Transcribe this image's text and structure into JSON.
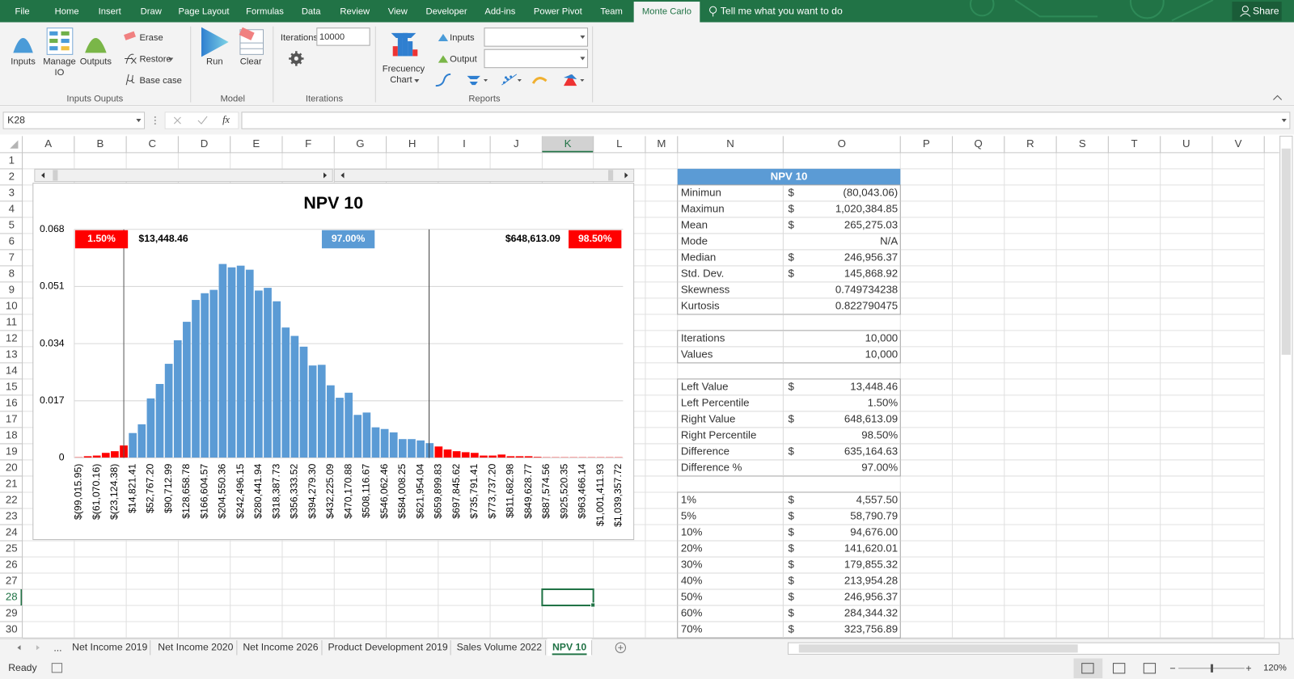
{
  "ribbon": {
    "tabs": [
      {
        "label": "File"
      },
      {
        "label": "Home"
      },
      {
        "label": "Insert"
      },
      {
        "label": "Draw"
      },
      {
        "label": "Page Layout"
      },
      {
        "label": "Formulas"
      },
      {
        "label": "Data"
      },
      {
        "label": "Review"
      },
      {
        "label": "View"
      },
      {
        "label": "Developer"
      },
      {
        "label": "Add-ins"
      },
      {
        "label": "Power Pivot"
      },
      {
        "label": "Team"
      },
      {
        "label": "Monte Carlo",
        "selected": true
      }
    ],
    "search": "Tell me what you want to do",
    "share": "Share",
    "groups": [
      {
        "name": "Inputs Ouputs",
        "buttons": [
          [
            "Inputs"
          ],
          [
            "Manage",
            "IO"
          ],
          [
            "Outputs"
          ]
        ],
        "small_buttons": [
          "Erase",
          "Restore",
          "Base case"
        ]
      },
      {
        "name": "Model",
        "buttons": [
          [
            "Run"
          ],
          [
            "Clear"
          ]
        ]
      },
      {
        "name": "Iterations",
        "field_label": "Iterations",
        "field_value": "10000"
      },
      {
        "name": "Reports",
        "buttons": [
          [
            "Frecuency",
            "Chart"
          ]
        ],
        "small_buttons": [
          "Inputs",
          "Output"
        ]
      }
    ]
  },
  "formula_bar": {
    "name_box": "K28",
    "fx": "fx"
  },
  "sheet": {
    "columns": [
      "A",
      "B",
      "C",
      "D",
      "E",
      "F",
      "G",
      "H",
      "I",
      "J",
      "K",
      "L",
      "M",
      "N",
      "O",
      "P",
      "Q",
      "R",
      "S",
      "T",
      "U",
      "V"
    ],
    "rows": [
      1,
      2,
      3,
      4,
      5,
      6,
      7,
      8,
      9,
      10,
      11,
      12,
      13,
      14,
      15,
      16,
      17,
      18,
      19,
      20,
      21,
      22,
      23,
      24,
      25,
      26,
      27,
      28,
      29,
      30
    ]
  },
  "chart_data": {
    "type": "bar",
    "title": "NPV 10",
    "categories": [
      "$(99,015.95)",
      null,
      "$(61,070.16)",
      null,
      "$(23,124.38)",
      null,
      "$14,821.41",
      null,
      "$52,767.20",
      null,
      "$90,712.99",
      null,
      "$128,658.78",
      null,
      "$166,604.57",
      null,
      "$204,550.36",
      null,
      "$242,496.15",
      null,
      "$280,441.94",
      null,
      "$318,387.73",
      null,
      "$356,333.52",
      null,
      "$394,279.30",
      null,
      "$432,225.09",
      null,
      "$470,170.88",
      null,
      "$508,116.67",
      null,
      "$546,062.46",
      null,
      "$584,008.25",
      null,
      "$621,954.04",
      null,
      "$659,899.83",
      null,
      "$697,845.62",
      null,
      "$735,791.41",
      null,
      "$773,737.20",
      null,
      "$811,682.98",
      null,
      "$849,628.77",
      null,
      "$887,574.56",
      null,
      "$925,520.35",
      null,
      "$963,466.14",
      null,
      "$1,001,411.93",
      null,
      "$1,039,357.72"
    ],
    "values": [
      0.0002,
      0.0005,
      0.0007,
      0.0015,
      0.002,
      0.0037,
      0.0074,
      0.01,
      0.0177,
      0.022,
      0.028,
      0.035,
      0.0405,
      0.047,
      0.049,
      0.05,
      0.0577,
      0.0567,
      0.0572,
      0.056,
      0.0498,
      0.0506,
      0.0466,
      0.0388,
      0.0363,
      0.0331,
      0.0275,
      0.0277,
      0.0216,
      0.0179,
      0.0194,
      0.0128,
      0.0135,
      0.0091,
      0.0086,
      0.0076,
      0.0056,
      0.0056,
      0.0052,
      0.0044,
      0.0034,
      0.0025,
      0.002,
      0.0017,
      0.0015,
      0.0007,
      0.0007,
      0.001,
      0.0005,
      0.0005,
      0.0005,
      0.0003,
      0.0002,
      0.0002,
      0.0002,
      0.0002,
      0.0002,
      0.0002,
      0.0002,
      0.0002,
      0.0002
    ],
    "colors": [
      "#ff0000",
      "#ff0000",
      "#ff0000",
      "#ff0000",
      "#ff0000",
      "#ff0000",
      "#5b9bd5",
      "#5b9bd5",
      "#5b9bd5",
      "#5b9bd5",
      "#5b9bd5",
      "#5b9bd5",
      "#5b9bd5",
      "#5b9bd5",
      "#5b9bd5",
      "#5b9bd5",
      "#5b9bd5",
      "#5b9bd5",
      "#5b9bd5",
      "#5b9bd5",
      "#5b9bd5",
      "#5b9bd5",
      "#5b9bd5",
      "#5b9bd5",
      "#5b9bd5",
      "#5b9bd5",
      "#5b9bd5",
      "#5b9bd5",
      "#5b9bd5",
      "#5b9bd5",
      "#5b9bd5",
      "#5b9bd5",
      "#5b9bd5",
      "#5b9bd5",
      "#5b9bd5",
      "#5b9bd5",
      "#5b9bd5",
      "#5b9bd5",
      "#5b9bd5",
      "#5b9bd5",
      "#ff0000",
      "#ff0000",
      "#ff0000",
      "#ff0000",
      "#ff0000",
      "#ff0000",
      "#ff0000",
      "#ff0000",
      "#ff0000",
      "#ff0000",
      "#ff0000",
      "#ff0000",
      "#ff0000",
      "#ff0000",
      "#ff0000",
      "#ff0000",
      "#ff0000",
      "#ff0000",
      "#ff0000",
      "#ff0000",
      "#ff0000"
    ],
    "ylim": [
      0,
      0.068
    ],
    "yticks": [
      0,
      0.017,
      0.034,
      0.051,
      0.068
    ],
    "grid": true,
    "annotations": [
      {
        "text": "1.50%",
        "box": "#ff0000"
      },
      {
        "text": "$13,448.46"
      },
      {
        "text": "97.00%",
        "box": "#5b9bd5"
      },
      {
        "text": "$648,613.09"
      },
      {
        "text": "98.50%",
        "box": "#ff0000"
      }
    ]
  },
  "stats_table": {
    "title": "NPV 10",
    "sections": [
      [
        {
          "label": "Minimun",
          "currency": "$",
          "value": "(80,043.06)"
        },
        {
          "label": "Maximun",
          "currency": "$",
          "value": "1,020,384.85"
        },
        {
          "label": "Mean",
          "currency": "$",
          "value": "265,275.03"
        },
        {
          "label": "Mode",
          "value": "N/A"
        },
        {
          "label": "Median",
          "currency": "$",
          "value": "246,956.37"
        },
        {
          "label": "Std. Dev.",
          "currency": "$",
          "value": "145,868.92"
        },
        {
          "label": "Skewness",
          "value": "0.749734238"
        },
        {
          "label": "Kurtosis",
          "value": "0.822790475"
        }
      ],
      [
        {
          "label": "Iterations",
          "value": "10,000"
        },
        {
          "label": "Values",
          "value": "10,000"
        }
      ],
      [
        {
          "label": "Left Value",
          "currency": "$",
          "value": "13,448.46"
        },
        {
          "label": "Left Percentile",
          "value": "1.50%"
        },
        {
          "label": "Right Value",
          "currency": "$",
          "value": "648,613.09"
        },
        {
          "label": "Right Percentile",
          "value": "98.50%"
        },
        {
          "label": "Difference",
          "currency": "$",
          "value": "635,164.63"
        },
        {
          "label": "Difference %",
          "value": "97.00%"
        }
      ],
      [
        {
          "label": "1%",
          "currency": "$",
          "value": "4,557.50"
        },
        {
          "label": "5%",
          "currency": "$",
          "value": "58,790.79"
        },
        {
          "label": "10%",
          "currency": "$",
          "value": "94,676.00"
        },
        {
          "label": "20%",
          "currency": "$",
          "value": "141,620.01"
        },
        {
          "label": "30%",
          "currency": "$",
          "value": "179,855.32"
        },
        {
          "label": "40%",
          "currency": "$",
          "value": "213,954.28"
        },
        {
          "label": "50%",
          "currency": "$",
          "value": "246,956.37"
        },
        {
          "label": "60%",
          "currency": "$",
          "value": "284,344.32"
        },
        {
          "label": "70%",
          "currency": "$",
          "value": "323,756.89"
        }
      ]
    ]
  },
  "sheet_tabs": {
    "overflow": "...",
    "tabs": [
      {
        "label": "Net Income 2019"
      },
      {
        "label": "Net Income 2020"
      },
      {
        "label": "Net Income 2026"
      },
      {
        "label": "Product Development 2019"
      },
      {
        "label": "Sales Volume 2022"
      },
      {
        "label": "NPV 10",
        "active": true
      }
    ]
  },
  "status": {
    "mode": "Ready",
    "zoom": "120%"
  }
}
